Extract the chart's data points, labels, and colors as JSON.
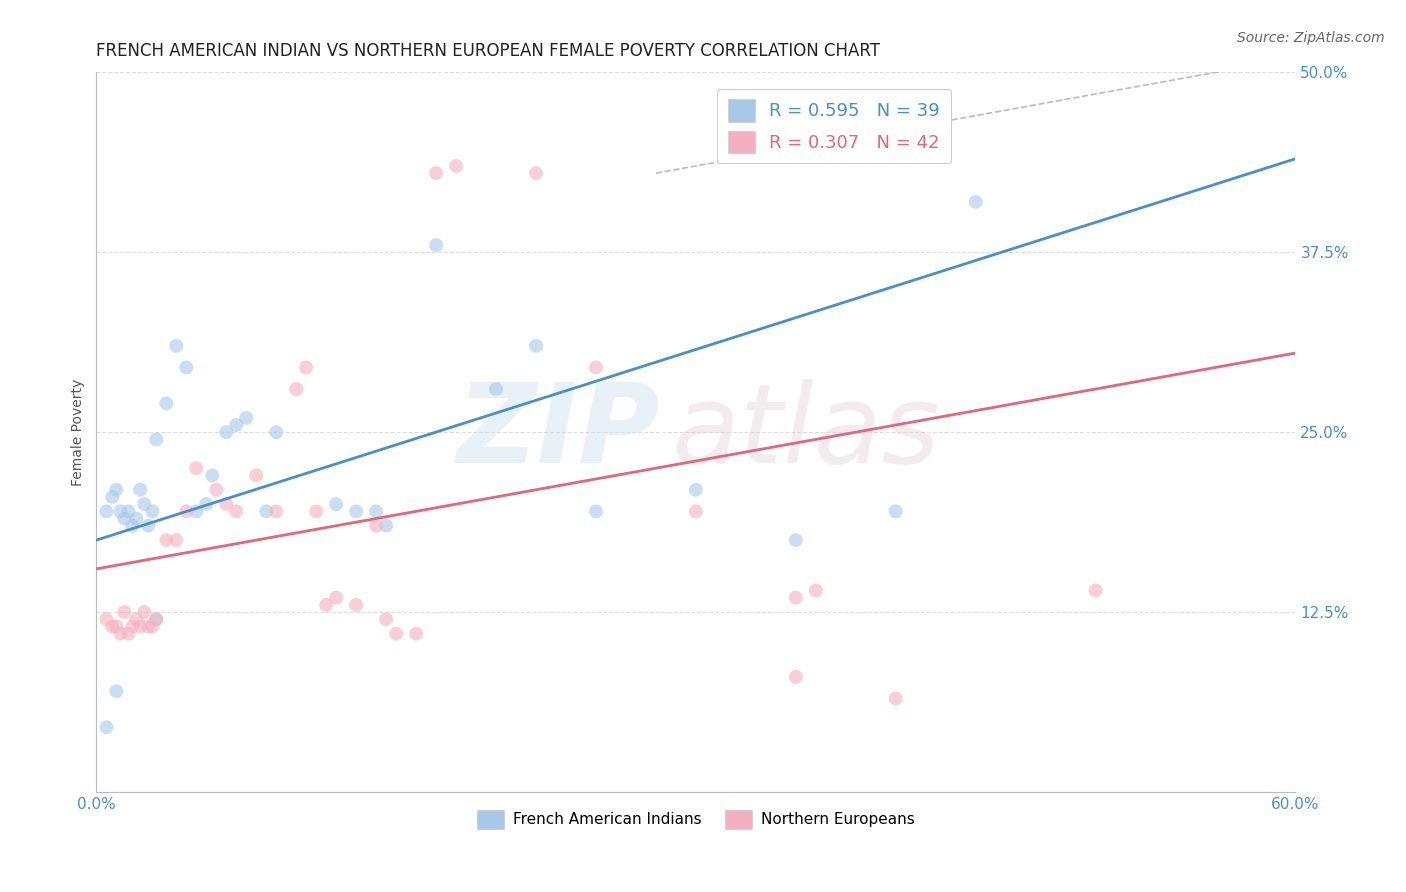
{
  "title": "FRENCH AMERICAN INDIAN VS NORTHERN EUROPEAN FEMALE POVERTY CORRELATION CHART",
  "source": "Source: ZipAtlas.com",
  "ylabel": "Female Poverty",
  "xlabel": "",
  "xlim": [
    0.0,
    0.6
  ],
  "ylim": [
    0.0,
    0.5
  ],
  "xticks": [
    0.0,
    0.1,
    0.2,
    0.3,
    0.4,
    0.5,
    0.6
  ],
  "xticklabels": [
    "0.0%",
    "",
    "",
    "",
    "",
    "",
    "60.0%"
  ],
  "yticks": [
    0.0,
    0.125,
    0.25,
    0.375,
    0.5
  ],
  "yticklabels": [
    "",
    "12.5%",
    "25.0%",
    "37.5%",
    "50.0%"
  ],
  "blue_R": 0.595,
  "blue_N": 39,
  "pink_R": 0.307,
  "pink_N": 42,
  "legend_label_blue": "French American Indians",
  "legend_label_pink": "Northern Europeans",
  "watermark_zip": "ZIP",
  "watermark_atlas": "atlas",
  "title_fontsize": 12,
  "source_fontsize": 10,
  "axis_label_fontsize": 10,
  "tick_fontsize": 11,
  "blue_scatter": [
    [
      0.005,
      0.195
    ],
    [
      0.008,
      0.205
    ],
    [
      0.01,
      0.21
    ],
    [
      0.012,
      0.195
    ],
    [
      0.014,
      0.19
    ],
    [
      0.016,
      0.195
    ],
    [
      0.018,
      0.185
    ],
    [
      0.02,
      0.19
    ],
    [
      0.022,
      0.21
    ],
    [
      0.024,
      0.2
    ],
    [
      0.026,
      0.185
    ],
    [
      0.028,
      0.195
    ],
    [
      0.03,
      0.245
    ],
    [
      0.035,
      0.27
    ],
    [
      0.04,
      0.31
    ],
    [
      0.045,
      0.295
    ],
    [
      0.05,
      0.195
    ],
    [
      0.055,
      0.2
    ],
    [
      0.058,
      0.22
    ],
    [
      0.065,
      0.25
    ],
    [
      0.07,
      0.255
    ],
    [
      0.075,
      0.26
    ],
    [
      0.085,
      0.195
    ],
    [
      0.09,
      0.25
    ],
    [
      0.12,
      0.2
    ],
    [
      0.13,
      0.195
    ],
    [
      0.14,
      0.195
    ],
    [
      0.145,
      0.185
    ],
    [
      0.17,
      0.38
    ],
    [
      0.2,
      0.28
    ],
    [
      0.22,
      0.31
    ],
    [
      0.25,
      0.195
    ],
    [
      0.3,
      0.21
    ],
    [
      0.35,
      0.175
    ],
    [
      0.4,
      0.195
    ],
    [
      0.44,
      0.41
    ],
    [
      0.005,
      0.045
    ],
    [
      0.01,
      0.07
    ],
    [
      0.03,
      0.12
    ]
  ],
  "pink_scatter": [
    [
      0.005,
      0.12
    ],
    [
      0.008,
      0.115
    ],
    [
      0.01,
      0.115
    ],
    [
      0.012,
      0.11
    ],
    [
      0.014,
      0.125
    ],
    [
      0.016,
      0.11
    ],
    [
      0.018,
      0.115
    ],
    [
      0.02,
      0.12
    ],
    [
      0.022,
      0.115
    ],
    [
      0.024,
      0.125
    ],
    [
      0.026,
      0.115
    ],
    [
      0.028,
      0.115
    ],
    [
      0.03,
      0.12
    ],
    [
      0.035,
      0.175
    ],
    [
      0.04,
      0.175
    ],
    [
      0.045,
      0.195
    ],
    [
      0.05,
      0.225
    ],
    [
      0.06,
      0.21
    ],
    [
      0.065,
      0.2
    ],
    [
      0.07,
      0.195
    ],
    [
      0.08,
      0.22
    ],
    [
      0.09,
      0.195
    ],
    [
      0.1,
      0.28
    ],
    [
      0.105,
      0.295
    ],
    [
      0.11,
      0.195
    ],
    [
      0.115,
      0.13
    ],
    [
      0.12,
      0.135
    ],
    [
      0.13,
      0.13
    ],
    [
      0.14,
      0.185
    ],
    [
      0.145,
      0.12
    ],
    [
      0.15,
      0.11
    ],
    [
      0.16,
      0.11
    ],
    [
      0.17,
      0.43
    ],
    [
      0.18,
      0.435
    ],
    [
      0.22,
      0.43
    ],
    [
      0.25,
      0.295
    ],
    [
      0.3,
      0.195
    ],
    [
      0.35,
      0.135
    ],
    [
      0.36,
      0.14
    ],
    [
      0.4,
      0.065
    ],
    [
      0.5,
      0.14
    ],
    [
      0.35,
      0.08
    ]
  ],
  "blue_line_x": [
    0.0,
    0.6
  ],
  "blue_line_y_start": 0.175,
  "blue_line_y_end": 0.44,
  "pink_line_x": [
    0.0,
    0.6
  ],
  "pink_line_y_start": 0.155,
  "pink_line_y_end": 0.305,
  "diag_line_x": [
    0.28,
    0.58
  ],
  "diag_line_y": [
    0.43,
    0.505
  ],
  "blue_color": "#A8C8E8",
  "pink_color": "#F4B0C0",
  "blue_line_color": "#4A90C8",
  "pink_line_color": "#E06878",
  "diag_line_color": "#BBBBBB",
  "scatter_size": 100,
  "scatter_alpha": 0.6,
  "background_color": "#FFFFFF",
  "grid_color": "#DDDDDD"
}
